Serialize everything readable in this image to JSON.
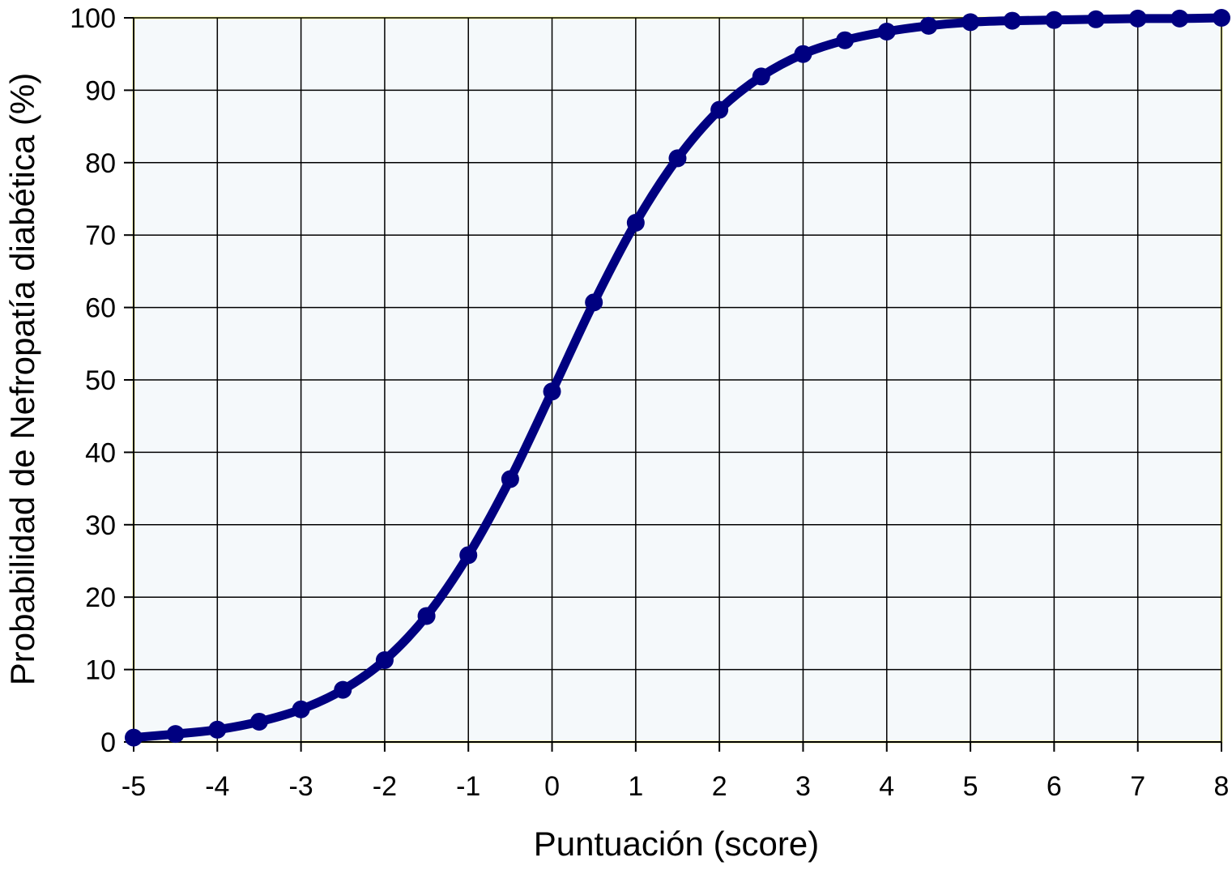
{
  "chart_data": {
    "type": "line",
    "title": "",
    "xlabel": "Puntuación (score)",
    "ylabel": "Probabilidad de Nefropatía diabética (%)",
    "xlim": [
      -5,
      8
    ],
    "ylim": [
      0,
      100
    ],
    "x_ticks": [
      "-5",
      "-4",
      "-3",
      "-2",
      "-1",
      "0",
      "1",
      "2",
      "3",
      "4",
      "5",
      "6",
      "7",
      "8"
    ],
    "y_ticks": [
      "0",
      "10",
      "20",
      "30",
      "40",
      "50",
      "60",
      "70",
      "80",
      "90",
      "100"
    ],
    "grid": true,
    "legend": "none",
    "series": [
      {
        "color": "#000080",
        "marker": "circle",
        "x": [
          -5,
          -4.5,
          -4,
          -3.5,
          -3,
          -2.5,
          -2,
          -1.5,
          -1,
          -0.5,
          0,
          0.5,
          1,
          1.5,
          2,
          2.5,
          3,
          3.5,
          4,
          4.5,
          5,
          5.5,
          6,
          6.5,
          7,
          7.5,
          8
        ],
        "y": [
          0.6,
          1.1,
          1.7,
          2.8,
          4.5,
          7.2,
          11.3,
          17.4,
          25.8,
          36.3,
          48.4,
          60.7,
          71.7,
          80.6,
          87.3,
          91.9,
          95.0,
          96.9,
          98.1,
          98.9,
          99.4,
          99.6,
          99.7,
          99.8,
          99.9,
          99.9,
          100.0
        ]
      }
    ],
    "colors": {
      "plot_background": "#f5f9fb",
      "plot_border": "#ffff99",
      "grid": "#000000",
      "series": "#000080"
    }
  }
}
